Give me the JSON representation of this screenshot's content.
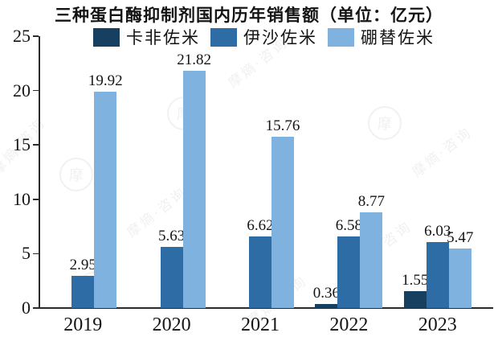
{
  "title": "三种蛋白酶抑制剂国内历年销售额（单位：亿元）",
  "watermark_text": "摩熵·咨询",
  "watermark_logo_glyph": "摩",
  "colors": {
    "series_dark": "#173F5F",
    "series_medium": "#2D6CA5",
    "series_light": "#7FB2DE",
    "axis": "#2b2b2b",
    "text": "#141414"
  },
  "chart_data": {
    "type": "bar",
    "title": "三种蛋白酶抑制剂国内历年销售额（单位：亿元）",
    "categories": [
      "2019",
      "2020",
      "2021",
      "2022",
      "2023"
    ],
    "series": [
      {
        "name": "卡非佐米",
        "color": "#173F5F",
        "values": [
          null,
          null,
          null,
          0.36,
          1.55
        ]
      },
      {
        "name": "伊沙佐米",
        "color": "#2D6CA5",
        "values": [
          2.95,
          5.63,
          6.62,
          6.58,
          6.03
        ]
      },
      {
        "name": "硼替佐米",
        "color": "#7FB2DE",
        "values": [
          19.92,
          21.82,
          15.76,
          8.77,
          5.47
        ]
      }
    ],
    "xlabel": "",
    "ylabel": "",
    "ylim": [
      0,
      25
    ],
    "yticks": [
      0,
      5,
      10,
      15,
      20,
      25
    ],
    "legend_position": "top",
    "grid": false,
    "data_labels": true,
    "data_label_decimals": 2
  }
}
